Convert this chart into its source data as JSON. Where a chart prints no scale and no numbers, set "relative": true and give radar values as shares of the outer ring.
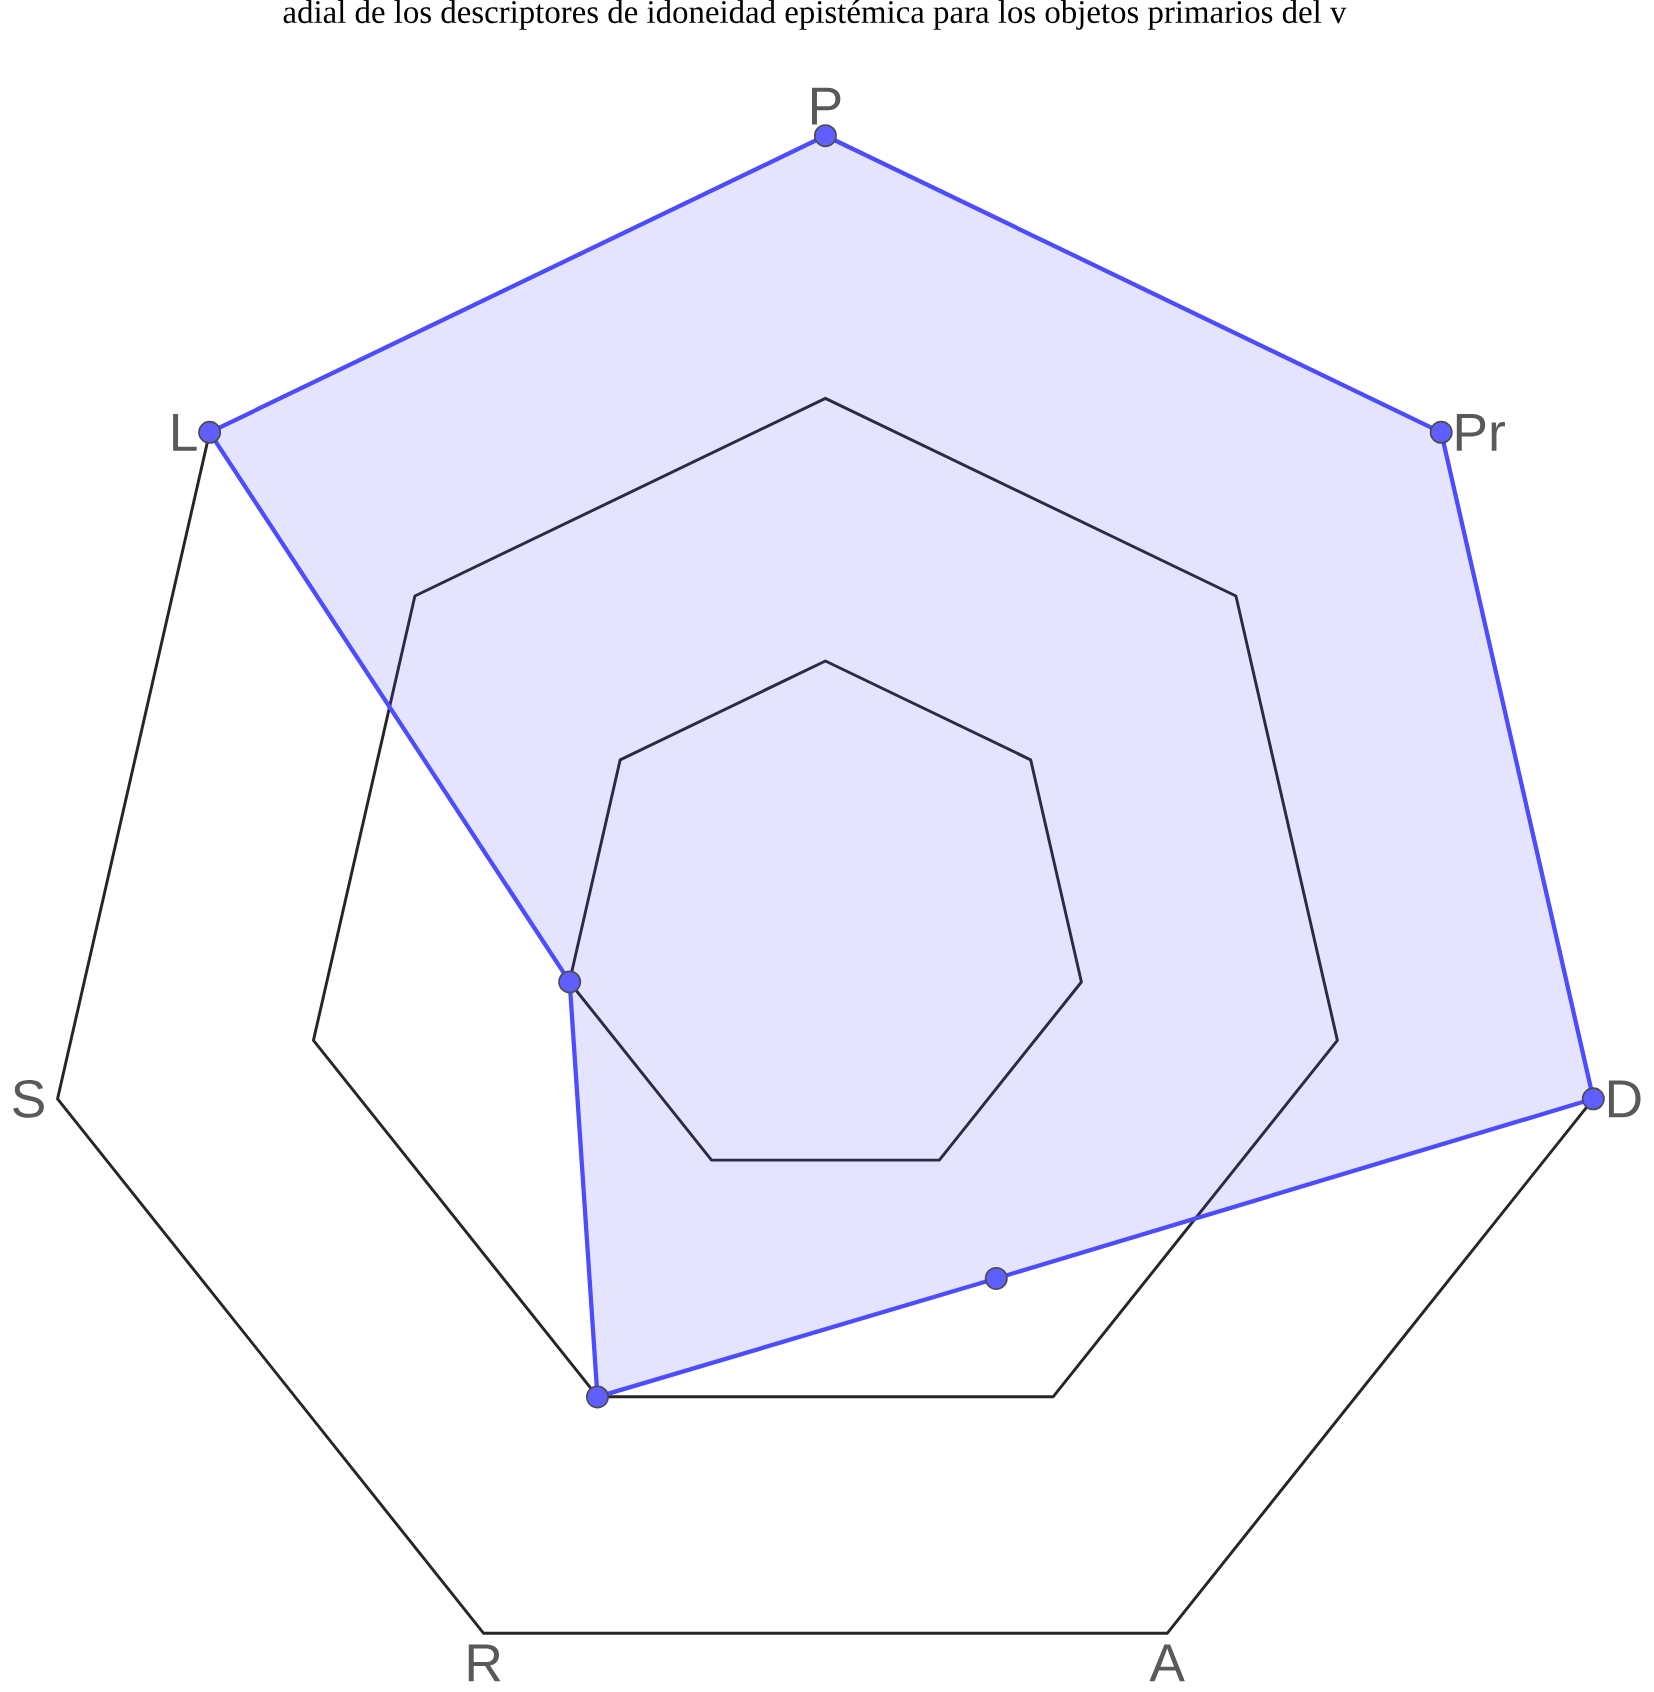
{
  "chart_data": {
    "type": "radar",
    "title": "adial de los descriptores de idoneidad epistémica para los objetos primarios del v",
    "categories": [
      "P",
      "Pr",
      "D",
      "A",
      "R",
      "S",
      "L"
    ],
    "series": [
      {
        "color": "#4d4dff",
        "values": [
          1,
          1,
          1,
          0.5,
          0.667,
          0.333,
          1
        ]
      }
    ],
    "relative": true,
    "grid": true,
    "marker": "circle"
  }
}
